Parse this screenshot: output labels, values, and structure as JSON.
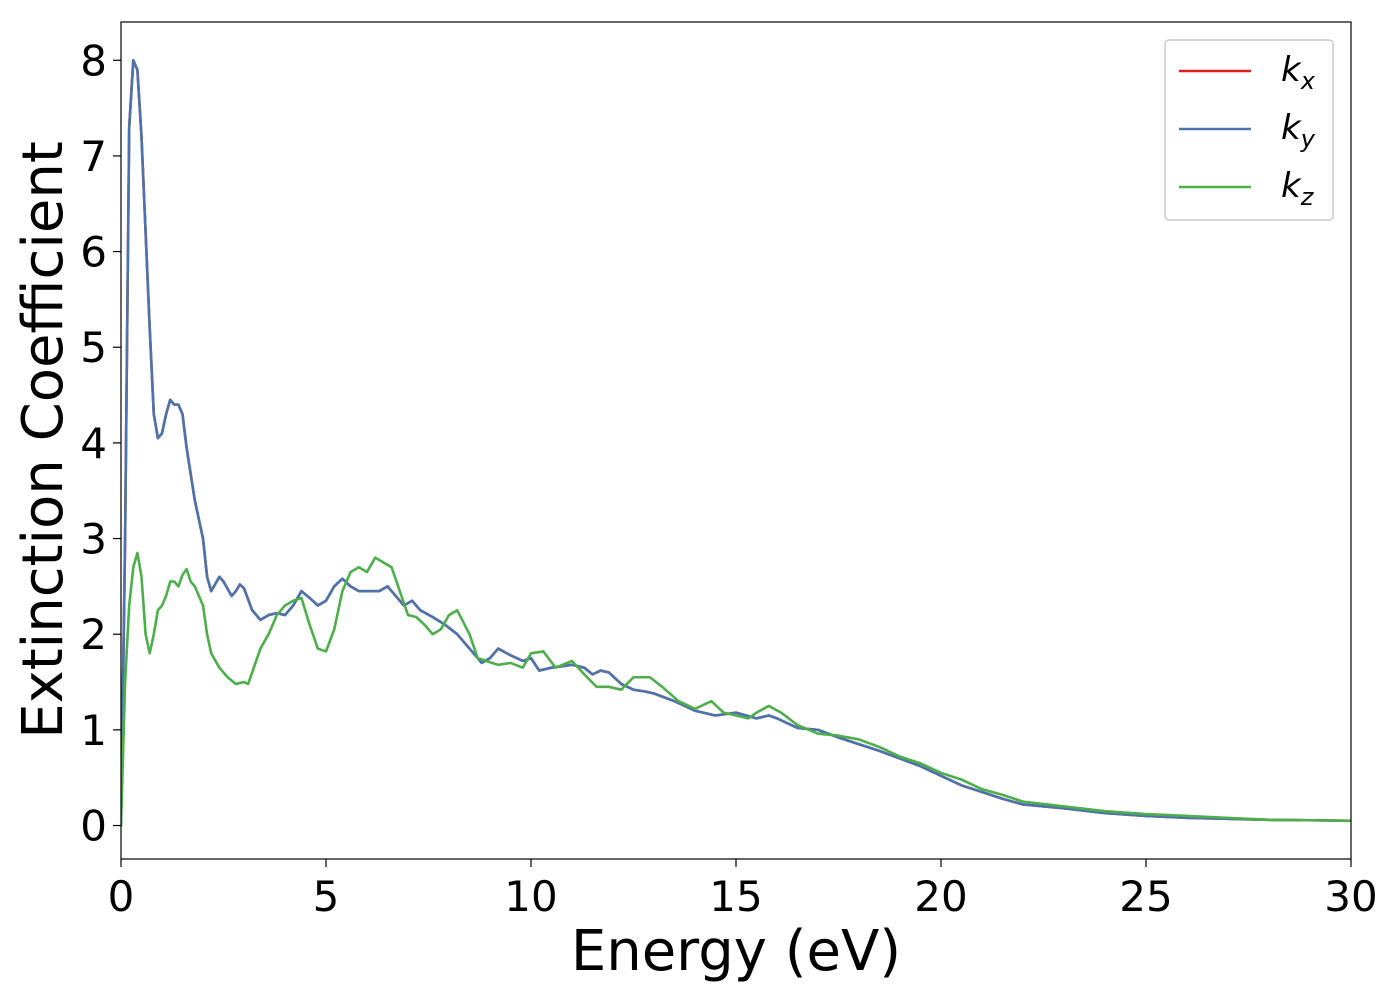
{
  "chart_data": {
    "type": "line",
    "xlabel": "Energy (eV)",
    "ylabel": "Extinction Coefficient",
    "xlim": [
      0,
      30
    ],
    "ylim": [
      -0.35,
      8.4
    ],
    "xticks": [
      "0",
      "5",
      "10",
      "15",
      "20",
      "25",
      "30"
    ],
    "yticks": [
      "0",
      "1",
      "2",
      "3",
      "4",
      "5",
      "6",
      "7",
      "8"
    ],
    "grid": false,
    "legend_position": "top-right",
    "series": [
      {
        "name": "k",
        "sub": "x",
        "color": "#e41a1c",
        "points": [
          [
            0,
            0
          ],
          [
            0.1,
            3.0
          ],
          [
            0.2,
            7.3
          ],
          [
            0.3,
            8.0
          ],
          [
            0.4,
            7.9
          ],
          [
            0.5,
            7.2
          ],
          [
            0.6,
            6.2
          ],
          [
            0.7,
            5.2
          ],
          [
            0.8,
            4.3
          ],
          [
            0.9,
            4.05
          ],
          [
            1.0,
            4.1
          ],
          [
            1.1,
            4.3
          ],
          [
            1.2,
            4.45
          ],
          [
            1.3,
            4.4
          ],
          [
            1.4,
            4.4
          ],
          [
            1.5,
            4.3
          ],
          [
            1.6,
            3.95
          ],
          [
            1.8,
            3.4
          ],
          [
            2.0,
            3.0
          ],
          [
            2.1,
            2.6
          ],
          [
            2.2,
            2.45
          ],
          [
            2.4,
            2.6
          ],
          [
            2.5,
            2.55
          ],
          [
            2.7,
            2.4
          ],
          [
            2.8,
            2.45
          ],
          [
            2.9,
            2.52
          ],
          [
            3.0,
            2.48
          ],
          [
            3.2,
            2.25
          ],
          [
            3.4,
            2.15
          ],
          [
            3.6,
            2.2
          ],
          [
            3.8,
            2.22
          ],
          [
            4.0,
            2.2
          ],
          [
            4.2,
            2.3
          ],
          [
            4.4,
            2.45
          ],
          [
            4.6,
            2.38
          ],
          [
            4.8,
            2.3
          ],
          [
            5.0,
            2.35
          ],
          [
            5.2,
            2.5
          ],
          [
            5.4,
            2.58
          ],
          [
            5.6,
            2.5
          ],
          [
            5.8,
            2.45
          ],
          [
            6.0,
            2.45
          ],
          [
            6.3,
            2.45
          ],
          [
            6.5,
            2.5
          ],
          [
            6.7,
            2.4
          ],
          [
            6.9,
            2.3
          ],
          [
            7.1,
            2.35
          ],
          [
            7.3,
            2.25
          ],
          [
            7.6,
            2.18
          ],
          [
            7.9,
            2.1
          ],
          [
            8.2,
            2.0
          ],
          [
            8.5,
            1.85
          ],
          [
            8.8,
            1.7
          ],
          [
            9.0,
            1.75
          ],
          [
            9.2,
            1.85
          ],
          [
            9.5,
            1.78
          ],
          [
            9.8,
            1.72
          ],
          [
            10.0,
            1.75
          ],
          [
            10.2,
            1.62
          ],
          [
            10.5,
            1.65
          ],
          [
            11.0,
            1.68
          ],
          [
            11.3,
            1.65
          ],
          [
            11.5,
            1.58
          ],
          [
            11.7,
            1.62
          ],
          [
            11.9,
            1.6
          ],
          [
            12.2,
            1.48
          ],
          [
            12.5,
            1.42
          ],
          [
            12.8,
            1.4
          ],
          [
            13.0,
            1.38
          ],
          [
            13.5,
            1.3
          ],
          [
            14.0,
            1.2
          ],
          [
            14.5,
            1.15
          ],
          [
            15.0,
            1.18
          ],
          [
            15.5,
            1.12
          ],
          [
            15.8,
            1.15
          ],
          [
            16.0,
            1.12
          ],
          [
            16.5,
            1.02
          ],
          [
            17.0,
            1.0
          ],
          [
            17.5,
            0.92
          ],
          [
            18.0,
            0.85
          ],
          [
            18.5,
            0.78
          ],
          [
            19.0,
            0.7
          ],
          [
            19.5,
            0.62
          ],
          [
            20.0,
            0.52
          ],
          [
            20.5,
            0.42
          ],
          [
            21.0,
            0.35
          ],
          [
            21.5,
            0.28
          ],
          [
            22.0,
            0.22
          ],
          [
            23.0,
            0.18
          ],
          [
            24.0,
            0.13
          ],
          [
            25.0,
            0.1
          ],
          [
            26.0,
            0.08
          ],
          [
            27.0,
            0.07
          ],
          [
            28.0,
            0.06
          ],
          [
            29.0,
            0.055
          ],
          [
            30.0,
            0.05
          ]
        ]
      },
      {
        "name": "k",
        "sub": "y",
        "color": "#4a74ad",
        "points": [
          [
            0,
            0
          ],
          [
            0.1,
            3.0
          ],
          [
            0.2,
            7.3
          ],
          [
            0.3,
            8.0
          ],
          [
            0.4,
            7.9
          ],
          [
            0.5,
            7.2
          ],
          [
            0.6,
            6.2
          ],
          [
            0.7,
            5.2
          ],
          [
            0.8,
            4.3
          ],
          [
            0.9,
            4.05
          ],
          [
            1.0,
            4.1
          ],
          [
            1.1,
            4.3
          ],
          [
            1.2,
            4.45
          ],
          [
            1.3,
            4.4
          ],
          [
            1.4,
            4.4
          ],
          [
            1.5,
            4.3
          ],
          [
            1.6,
            3.95
          ],
          [
            1.8,
            3.4
          ],
          [
            2.0,
            3.0
          ],
          [
            2.1,
            2.6
          ],
          [
            2.2,
            2.45
          ],
          [
            2.4,
            2.6
          ],
          [
            2.5,
            2.55
          ],
          [
            2.7,
            2.4
          ],
          [
            2.8,
            2.45
          ],
          [
            2.9,
            2.52
          ],
          [
            3.0,
            2.48
          ],
          [
            3.2,
            2.25
          ],
          [
            3.4,
            2.15
          ],
          [
            3.6,
            2.2
          ],
          [
            3.8,
            2.22
          ],
          [
            4.0,
            2.2
          ],
          [
            4.2,
            2.3
          ],
          [
            4.4,
            2.45
          ],
          [
            4.6,
            2.38
          ],
          [
            4.8,
            2.3
          ],
          [
            5.0,
            2.35
          ],
          [
            5.2,
            2.5
          ],
          [
            5.4,
            2.58
          ],
          [
            5.6,
            2.5
          ],
          [
            5.8,
            2.45
          ],
          [
            6.0,
            2.45
          ],
          [
            6.3,
            2.45
          ],
          [
            6.5,
            2.5
          ],
          [
            6.7,
            2.4
          ],
          [
            6.9,
            2.3
          ],
          [
            7.1,
            2.35
          ],
          [
            7.3,
            2.25
          ],
          [
            7.6,
            2.18
          ],
          [
            7.9,
            2.1
          ],
          [
            8.2,
            2.0
          ],
          [
            8.5,
            1.85
          ],
          [
            8.8,
            1.7
          ],
          [
            9.0,
            1.75
          ],
          [
            9.2,
            1.85
          ],
          [
            9.5,
            1.78
          ],
          [
            9.8,
            1.72
          ],
          [
            10.0,
            1.75
          ],
          [
            10.2,
            1.62
          ],
          [
            10.5,
            1.65
          ],
          [
            11.0,
            1.68
          ],
          [
            11.3,
            1.65
          ],
          [
            11.5,
            1.58
          ],
          [
            11.7,
            1.62
          ],
          [
            11.9,
            1.6
          ],
          [
            12.2,
            1.48
          ],
          [
            12.5,
            1.42
          ],
          [
            12.8,
            1.4
          ],
          [
            13.0,
            1.38
          ],
          [
            13.5,
            1.3
          ],
          [
            14.0,
            1.2
          ],
          [
            14.5,
            1.15
          ],
          [
            15.0,
            1.18
          ],
          [
            15.5,
            1.12
          ],
          [
            15.8,
            1.15
          ],
          [
            16.0,
            1.12
          ],
          [
            16.5,
            1.02
          ],
          [
            17.0,
            1.0
          ],
          [
            17.5,
            0.92
          ],
          [
            18.0,
            0.85
          ],
          [
            18.5,
            0.78
          ],
          [
            19.0,
            0.7
          ],
          [
            19.5,
            0.62
          ],
          [
            20.0,
            0.52
          ],
          [
            20.5,
            0.42
          ],
          [
            21.0,
            0.35
          ],
          [
            21.5,
            0.28
          ],
          [
            22.0,
            0.22
          ],
          [
            23.0,
            0.18
          ],
          [
            24.0,
            0.13
          ],
          [
            25.0,
            0.1
          ],
          [
            26.0,
            0.08
          ],
          [
            27.0,
            0.07
          ],
          [
            28.0,
            0.06
          ],
          [
            29.0,
            0.055
          ],
          [
            30.0,
            0.05
          ]
        ]
      },
      {
        "name": "k",
        "sub": "z",
        "color": "#4daf4a",
        "points": [
          [
            0,
            0
          ],
          [
            0.1,
            1.5
          ],
          [
            0.2,
            2.3
          ],
          [
            0.3,
            2.7
          ],
          [
            0.4,
            2.85
          ],
          [
            0.5,
            2.6
          ],
          [
            0.6,
            2.0
          ],
          [
            0.7,
            1.8
          ],
          [
            0.8,
            2.0
          ],
          [
            0.9,
            2.25
          ],
          [
            1.0,
            2.3
          ],
          [
            1.1,
            2.4
          ],
          [
            1.2,
            2.55
          ],
          [
            1.3,
            2.55
          ],
          [
            1.4,
            2.5
          ],
          [
            1.5,
            2.62
          ],
          [
            1.6,
            2.68
          ],
          [
            1.7,
            2.55
          ],
          [
            1.8,
            2.5
          ],
          [
            2.0,
            2.3
          ],
          [
            2.1,
            2.0
          ],
          [
            2.2,
            1.8
          ],
          [
            2.4,
            1.65
          ],
          [
            2.6,
            1.55
          ],
          [
            2.8,
            1.48
          ],
          [
            3.0,
            1.5
          ],
          [
            3.1,
            1.48
          ],
          [
            3.2,
            1.6
          ],
          [
            3.4,
            1.85
          ],
          [
            3.6,
            2.0
          ],
          [
            3.8,
            2.2
          ],
          [
            4.0,
            2.3
          ],
          [
            4.2,
            2.35
          ],
          [
            4.4,
            2.38
          ],
          [
            4.6,
            2.1
          ],
          [
            4.8,
            1.85
          ],
          [
            5.0,
            1.82
          ],
          [
            5.2,
            2.05
          ],
          [
            5.4,
            2.45
          ],
          [
            5.6,
            2.65
          ],
          [
            5.8,
            2.7
          ],
          [
            6.0,
            2.65
          ],
          [
            6.2,
            2.8
          ],
          [
            6.4,
            2.75
          ],
          [
            6.6,
            2.7
          ],
          [
            6.8,
            2.45
          ],
          [
            7.0,
            2.2
          ],
          [
            7.2,
            2.18
          ],
          [
            7.4,
            2.1
          ],
          [
            7.6,
            2.0
          ],
          [
            7.8,
            2.05
          ],
          [
            8.0,
            2.2
          ],
          [
            8.2,
            2.25
          ],
          [
            8.5,
            2.0
          ],
          [
            8.7,
            1.75
          ],
          [
            8.9,
            1.72
          ],
          [
            9.2,
            1.68
          ],
          [
            9.5,
            1.7
          ],
          [
            9.8,
            1.65
          ],
          [
            10.0,
            1.8
          ],
          [
            10.3,
            1.82
          ],
          [
            10.6,
            1.65
          ],
          [
            11.0,
            1.72
          ],
          [
            11.3,
            1.58
          ],
          [
            11.6,
            1.45
          ],
          [
            11.9,
            1.45
          ],
          [
            12.2,
            1.42
          ],
          [
            12.5,
            1.55
          ],
          [
            12.9,
            1.55
          ],
          [
            13.2,
            1.45
          ],
          [
            13.6,
            1.3
          ],
          [
            14.0,
            1.22
          ],
          [
            14.4,
            1.3
          ],
          [
            14.7,
            1.18
          ],
          [
            15.0,
            1.15
          ],
          [
            15.3,
            1.12
          ],
          [
            15.5,
            1.18
          ],
          [
            15.8,
            1.25
          ],
          [
            16.1,
            1.18
          ],
          [
            16.5,
            1.05
          ],
          [
            17.0,
            0.96
          ],
          [
            17.5,
            0.94
          ],
          [
            18.0,
            0.9
          ],
          [
            18.5,
            0.82
          ],
          [
            19.0,
            0.72
          ],
          [
            19.5,
            0.65
          ],
          [
            20.0,
            0.55
          ],
          [
            20.5,
            0.48
          ],
          [
            21.0,
            0.38
          ],
          [
            21.5,
            0.32
          ],
          [
            22.0,
            0.25
          ],
          [
            23.0,
            0.2
          ],
          [
            24.0,
            0.15
          ],
          [
            25.0,
            0.12
          ],
          [
            26.0,
            0.1
          ],
          [
            27.0,
            0.08
          ],
          [
            28.0,
            0.06
          ],
          [
            29.0,
            0.055
          ],
          [
            30.0,
            0.05
          ]
        ]
      }
    ]
  }
}
